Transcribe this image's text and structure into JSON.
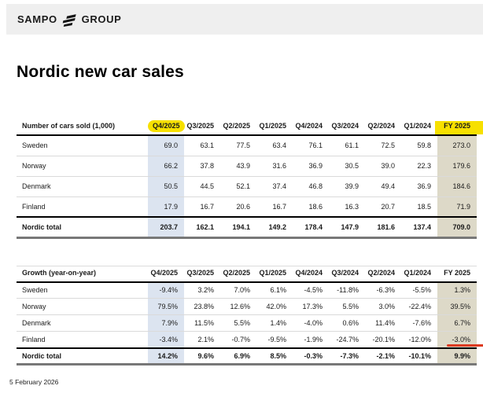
{
  "header": {
    "brand_left": "SAMPO",
    "brand_right": "GROUP"
  },
  "title": "Nordic new car sales",
  "footer_date": "5 February 2026",
  "colors": {
    "topbar_bg": "#efefef",
    "highlight_yellow": "#f7e000",
    "q4_col_bg": "#dce4f0",
    "fy_col_bg": "#ddd9c8",
    "red_annotation": "#dd3a21"
  },
  "columns": [
    "Q4/2025",
    "Q3/2025",
    "Q2/2025",
    "Q1/2025",
    "Q4/2024",
    "Q3/2024",
    "Q2/2024",
    "Q1/2024",
    "FY 2025"
  ],
  "tables": [
    {
      "label_header": "Number of cars sold (1,000)",
      "q4_header_pill": true,
      "fy_header_band": true,
      "rows": [
        {
          "label": "Sweden",
          "values": [
            "69.0",
            "63.1",
            "77.5",
            "63.4",
            "76.1",
            "61.1",
            "72.5",
            "59.8",
            "273.0"
          ]
        },
        {
          "label": "Norway",
          "values": [
            "66.2",
            "37.8",
            "43.9",
            "31.6",
            "36.9",
            "30.5",
            "39.0",
            "22.3",
            "179.6"
          ]
        },
        {
          "label": "Denmark",
          "values": [
            "50.5",
            "44.5",
            "52.1",
            "37.4",
            "46.8",
            "39.9",
            "49.4",
            "36.9",
            "184.6"
          ]
        },
        {
          "label": "Finland",
          "values": [
            "17.9",
            "16.7",
            "20.6",
            "16.7",
            "18.6",
            "16.3",
            "20.7",
            "18.5",
            "71.9"
          ]
        }
      ],
      "total": {
        "label": "Nordic total",
        "values": [
          "203.7",
          "162.1",
          "194.1",
          "149.2",
          "178.4",
          "147.9",
          "181.6",
          "137.4",
          "709.0"
        ]
      }
    },
    {
      "label_header": "Growth (year-on-year)",
      "q4_header_pill": false,
      "fy_header_band": false,
      "red_underline": {
        "row": 3,
        "col": 8
      },
      "rows": [
        {
          "label": "Sweden",
          "values": [
            "-9.4%",
            "3.2%",
            "7.0%",
            "6.1%",
            "-4.5%",
            "-11.8%",
            "-6.3%",
            "-5.5%",
            "1.3%"
          ]
        },
        {
          "label": "Norway",
          "values": [
            "79.5%",
            "23.8%",
            "12.6%",
            "42.0%",
            "17.3%",
            "5.5%",
            "3.0%",
            "-22.4%",
            "39.5%"
          ]
        },
        {
          "label": "Denmark",
          "values": [
            "7.9%",
            "11.5%",
            "5.5%",
            "1.4%",
            "-4.0%",
            "0.6%",
            "11.4%",
            "-7.6%",
            "6.7%"
          ]
        },
        {
          "label": "Finland",
          "values": [
            "-3.4%",
            "2.1%",
            "-0.7%",
            "-9.5%",
            "-1.9%",
            "-24.7%",
            "-20.1%",
            "-12.0%",
            "-3.0%"
          ]
        }
      ],
      "total": {
        "label": "Nordic total",
        "values": [
          "14.2%",
          "9.6%",
          "6.9%",
          "8.5%",
          "-0.3%",
          "-7.3%",
          "-2.1%",
          "-10.1%",
          "9.9%"
        ]
      }
    }
  ]
}
